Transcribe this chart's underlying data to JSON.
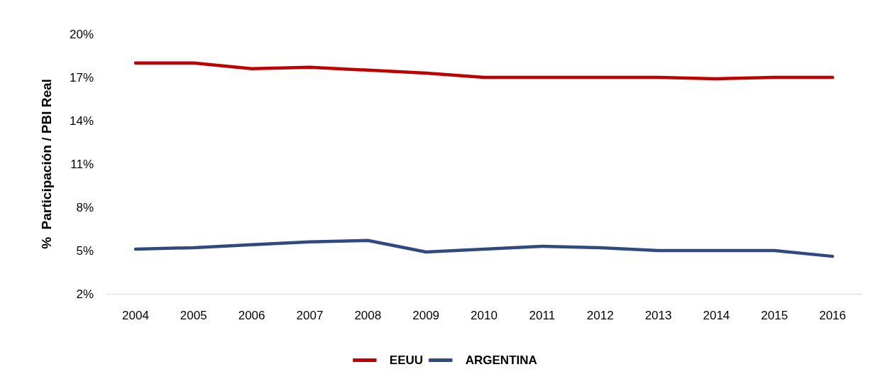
{
  "chart_data": {
    "type": "line",
    "ylabel": "%  Participación / PBI Real",
    "categories": [
      "2004",
      "2005",
      "2006",
      "2007",
      "2008",
      "2009",
      "2010",
      "2011",
      "2012",
      "2013",
      "2014",
      "2015",
      "2016"
    ],
    "series": [
      {
        "name": "EEUU",
        "color": "#c00000",
        "values": [
          18.0,
          18.0,
          17.6,
          17.7,
          17.5,
          17.3,
          17.0,
          17.0,
          17.0,
          17.0,
          16.9,
          17.0,
          17.0
        ]
      },
      {
        "name": "ARGENTINA",
        "color": "#2f4a7d",
        "values": [
          5.1,
          5.2,
          5.4,
          5.6,
          5.7,
          4.9,
          5.1,
          5.3,
          5.2,
          5.0,
          5.0,
          5.0,
          4.6
        ]
      }
    ],
    "ylim": [
      2,
      20
    ],
    "yticks": [
      {
        "value": 2,
        "label": "2%"
      },
      {
        "value": 5,
        "label": "5%"
      },
      {
        "value": 8,
        "label": "8%"
      },
      {
        "value": 11,
        "label": "11%"
      },
      {
        "value": 14,
        "label": "14%"
      },
      {
        "value": 17,
        "label": "17%"
      },
      {
        "value": 20,
        "label": "20%"
      }
    ],
    "grid": false,
    "legend": "bottom",
    "marker": "none",
    "line_style": "solid"
  }
}
